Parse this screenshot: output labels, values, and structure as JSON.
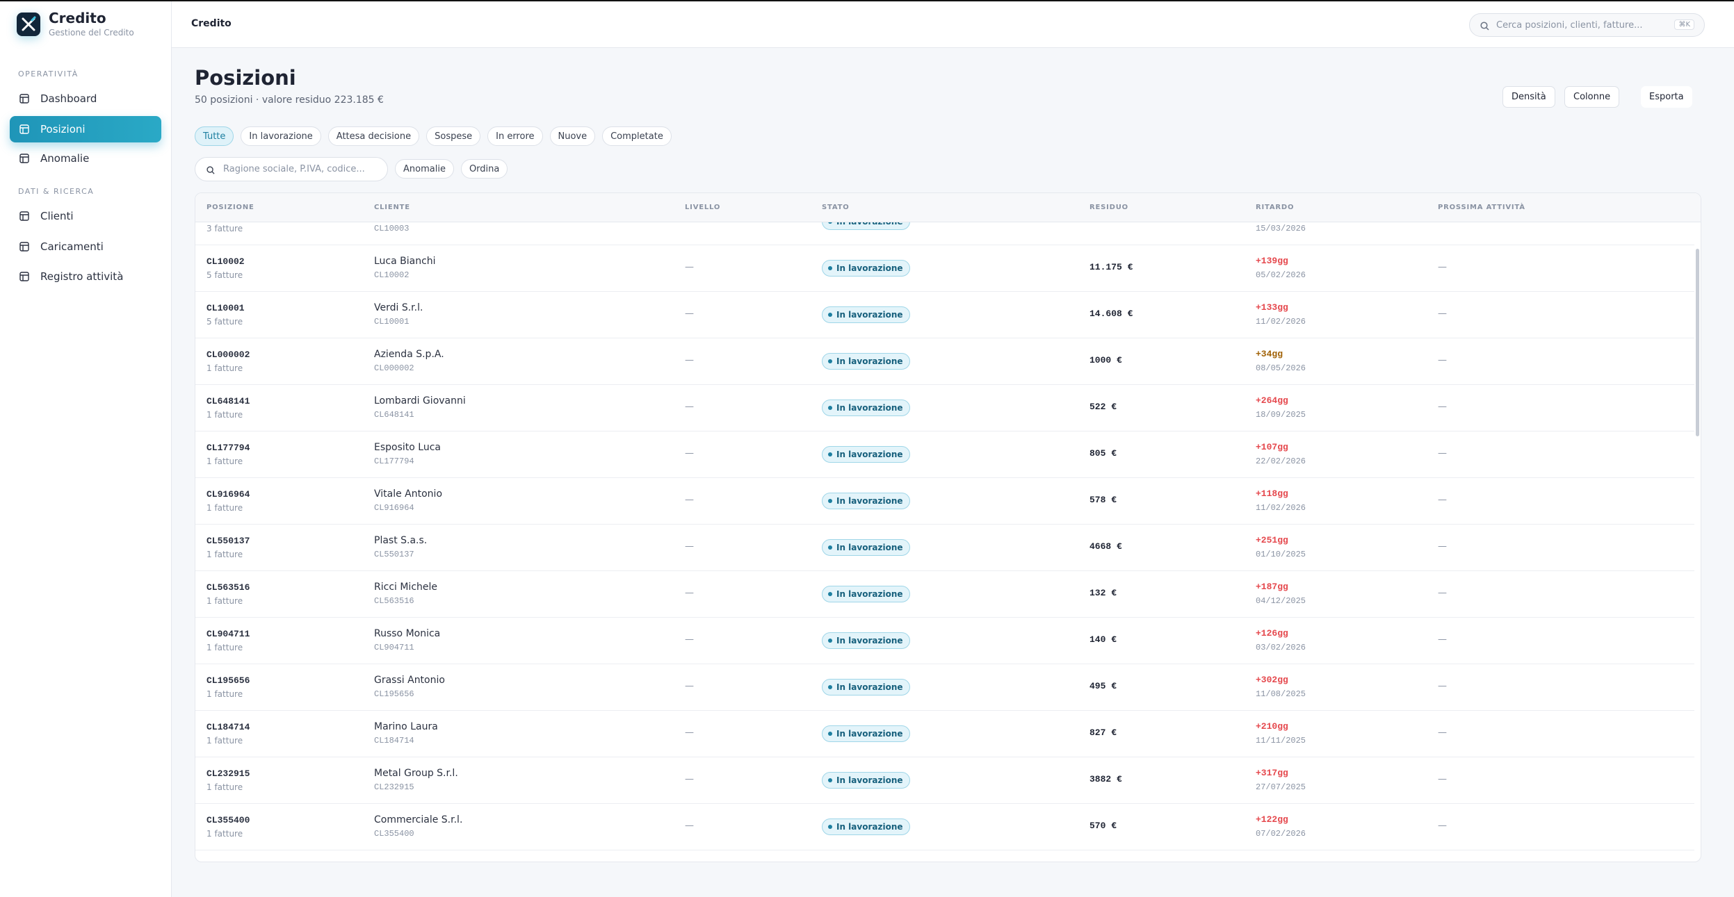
{
  "sidebar": {
    "brand": "Credito",
    "brand_subtitle": "Gestione del Credito",
    "sections": [
      {
        "label": "OPERATIVITÀ",
        "items": [
          "Dashboard",
          "Posizioni",
          "Anomalie"
        ]
      },
      {
        "label": "DATI & RICERCA",
        "items": [
          "Clienti",
          "Caricamenti",
          "Registro attività"
        ]
      }
    ],
    "active_item": "Posizioni"
  },
  "header": {
    "breadcrumb": "Credito",
    "search_placeholder": "Cerca posizioni, clienti, fatture...",
    "shortcut": "⌘K"
  },
  "page": {
    "title": "Posizioni",
    "subtitle": "50 posizioni · valore residuo 223.185 €",
    "actions": [
      "Densità",
      "Colonne",
      "Esporta"
    ],
    "tabs": [
      "Tutte",
      "In lavorazione",
      "Attesa decisione",
      "Sospese",
      "In errore",
      "Nuove",
      "Completate"
    ],
    "active_tab": "Tutte",
    "filter_placeholder": "Ragione sociale, P.IVA, codice...",
    "filter_buttons": [
      "Anomalie",
      "Ordina"
    ]
  },
  "table": {
    "columns": [
      "POSIZIONE",
      "CLIENTE",
      "LIVELLO",
      "STATO",
      "RESIDUO",
      "RITARDO",
      "PROSSIMA ATTIVITÀ"
    ],
    "rows": [
      {
        "invoices": "3 fatture",
        "client_code": "CL10003",
        "status": "In lavorazione",
        "date": "15/03/2026"
      },
      {
        "id": "CL10002",
        "invoices": "5 fatture",
        "client": "Luca Bianchi",
        "client_code": "CL10002",
        "level": "—",
        "status": "In lavorazione",
        "residual": "11.175 €",
        "delay": "+139gg",
        "delay_color": "#e5484d",
        "date": "05/02/2026",
        "next": "—"
      },
      {
        "id": "CL10001",
        "invoices": "5 fatture",
        "client": "Verdi S.r.l.",
        "client_code": "CL10001",
        "level": "—",
        "status": "In lavorazione",
        "residual": "14.608 €",
        "delay": "+133gg",
        "delay_color": "#e5484d",
        "date": "11/02/2026",
        "next": "—"
      },
      {
        "id": "CL000002",
        "invoices": "1 fatture",
        "client": "Azienda S.p.A.",
        "client_code": "CL000002",
        "level": "—",
        "status": "In lavorazione",
        "residual": "1000 €",
        "delay": "+34gg",
        "delay_color": "#a16207",
        "date": "08/05/2026",
        "next": "—"
      },
      {
        "id": "CL648141",
        "invoices": "1 fatture",
        "client": "Lombardi Giovanni",
        "client_code": "CL648141",
        "level": "—",
        "status": "In lavorazione",
        "residual": "522 €",
        "delay": "+264gg",
        "delay_color": "#e5484d",
        "date": "18/09/2025",
        "next": "—"
      },
      {
        "id": "CL177794",
        "invoices": "1 fatture",
        "client": "Esposito Luca",
        "client_code": "CL177794",
        "level": "—",
        "status": "In lavorazione",
        "residual": "805 €",
        "delay": "+107gg",
        "delay_color": "#e5484d",
        "date": "22/02/2026",
        "next": "—"
      },
      {
        "id": "CL916964",
        "invoices": "1 fatture",
        "client": "Vitale Antonio",
        "client_code": "CL916964",
        "level": "—",
        "status": "In lavorazione",
        "residual": "578 €",
        "delay": "+118gg",
        "delay_color": "#e5484d",
        "date": "11/02/2026",
        "next": "—"
      },
      {
        "id": "CL550137",
        "invoices": "1 fatture",
        "client": "Plast S.a.s.",
        "client_code": "CL550137",
        "level": "—",
        "status": "In lavorazione",
        "residual": "4668 €",
        "delay": "+251gg",
        "delay_color": "#e5484d",
        "date": "01/10/2025",
        "next": "—"
      },
      {
        "id": "CL563516",
        "invoices": "1 fatture",
        "client": "Ricci Michele",
        "client_code": "CL563516",
        "level": "—",
        "status": "In lavorazione",
        "residual": "132 €",
        "delay": "+187gg",
        "delay_color": "#e5484d",
        "date": "04/12/2025",
        "next": "—"
      },
      {
        "id": "CL904711",
        "invoices": "1 fatture",
        "client": "Russo Monica",
        "client_code": "CL904711",
        "level": "—",
        "status": "In lavorazione",
        "residual": "140 €",
        "delay": "+126gg",
        "delay_color": "#e5484d",
        "date": "03/02/2026",
        "next": "—"
      },
      {
        "id": "CL195656",
        "invoices": "1 fatture",
        "client": "Grassi Antonio",
        "client_code": "CL195656",
        "level": "—",
        "status": "In lavorazione",
        "residual": "495 €",
        "delay": "+302gg",
        "delay_color": "#e5484d",
        "date": "11/08/2025",
        "next": "—"
      },
      {
        "id": "CL184714",
        "invoices": "1 fatture",
        "client": "Marino Laura",
        "client_code": "CL184714",
        "level": "—",
        "status": "In lavorazione",
        "residual": "827 €",
        "delay": "+210gg",
        "delay_color": "#e5484d",
        "date": "11/11/2025",
        "next": "—"
      },
      {
        "id": "CL232915",
        "invoices": "1 fatture",
        "client": "Metal Group S.r.l.",
        "client_code": "CL232915",
        "level": "—",
        "status": "In lavorazione",
        "residual": "3882 €",
        "delay": "+317gg",
        "delay_color": "#e5484d",
        "date": "27/07/2025",
        "next": "—"
      },
      {
        "id": "CL355400",
        "invoices": "1 fatture",
        "client": "Commerciale S.r.l.",
        "client_code": "CL355400",
        "level": "—",
        "status": "In lavorazione",
        "residual": "570 €",
        "delay": "+122gg",
        "delay_color": "#e5484d",
        "date": "07/02/2026",
        "next": "—"
      }
    ]
  }
}
